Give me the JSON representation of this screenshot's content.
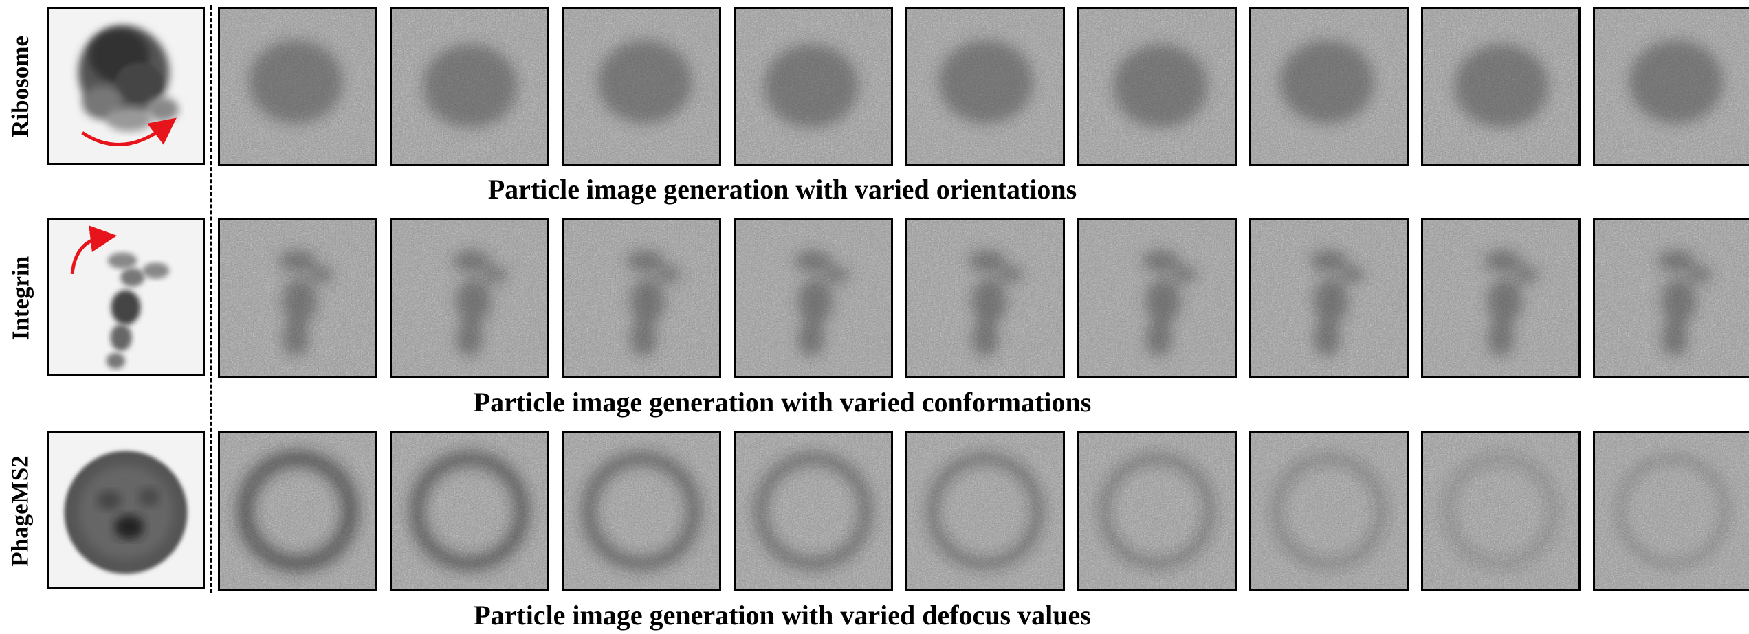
{
  "rows": [
    {
      "label": "Ribosome",
      "caption": "Particle image generation with varied orientations",
      "reference": "ribosome-density-map",
      "arrow": "rotation-arrow-bottom"
    },
    {
      "label": "Integrin",
      "caption": "Particle image generation with varied conformations",
      "reference": "integrin-density-map",
      "arrow": "rotation-arrow-top-left"
    },
    {
      "label": "PhageMS2",
      "caption": "Particle image generation with varied defocus values",
      "reference": "phagems2-density-map",
      "arrow": ""
    }
  ],
  "tiles_per_row": 9,
  "colors": {
    "arrow": "#e8141b",
    "border": "#000000",
    "background": "#ffffff"
  }
}
